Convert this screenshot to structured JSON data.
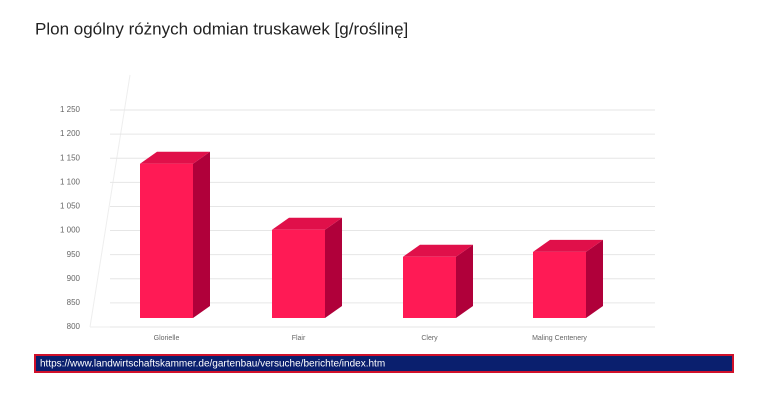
{
  "chart_data": {
    "type": "bar3d",
    "title": "Plon ogólny różnych odmian truskawek [g/roślinę]",
    "categories": [
      "Glorielle",
      "Flair",
      "Clery",
      "Maling Centenery"
    ],
    "values": [
      1120,
      983,
      927,
      937
    ],
    "color": "#ff1a55",
    "ylim": [
      800,
      1250
    ],
    "yticks": [
      800,
      850,
      900,
      950,
      {
        "value": 1000,
        "label": "1 000"
      },
      {
        "value": 1050,
        "label": "1 050"
      },
      {
        "value": 1100,
        "label": "1 100"
      },
      {
        "value": 1150,
        "label": "1 150"
      },
      {
        "value": 1200,
        "label": "1 200"
      },
      {
        "value": 1250,
        "label": "1 250"
      }
    ],
    "grid": true
  },
  "source_url": "https://www.landwirtschaftskammer.de/gartenbau/versuche/berichte/index.htm"
}
